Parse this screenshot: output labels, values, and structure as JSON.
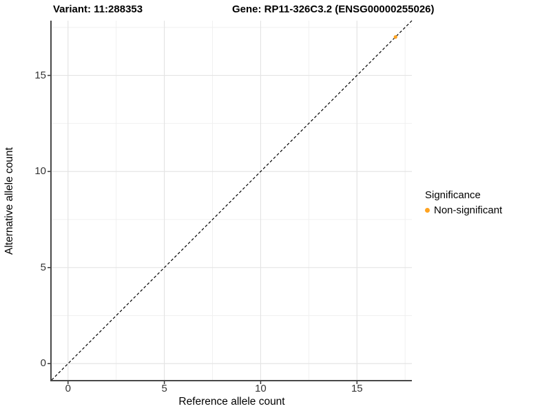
{
  "titles": {
    "variant": "Variant: 11:288353",
    "gene": "Gene: RP11-326C3.2 (ENSG00000255026)"
  },
  "axes": {
    "x_label": "Reference allele count",
    "y_label": "Alternative allele count",
    "x_tick_labels": [
      "0",
      "5",
      "10",
      "15"
    ],
    "y_tick_labels": [
      "0",
      "5",
      "10",
      "15"
    ]
  },
  "legend": {
    "title": "Significance",
    "items": [
      {
        "label": "Non-significant",
        "color": "#FFA320",
        "marker": "circle"
      }
    ]
  },
  "colors": {
    "axis_line": "#474747",
    "tick_mark": "#333333",
    "grid_major": "#E4E4E4",
    "grid_minor": "#F0F0F0",
    "identity_line": "#000000",
    "point": "#FFA320",
    "background": "#FFFFFF"
  },
  "chart_data": {
    "type": "scatter",
    "title": "Variant: 11:288353 | Gene: RP11-326C3.2 (ENSG00000255026)",
    "xlabel": "Reference allele count",
    "ylabel": "Alternative allele count",
    "xlim": [
      -0.85,
      17.85
    ],
    "ylim": [
      -0.85,
      17.85
    ],
    "x_major_ticks": [
      0,
      5,
      10,
      15
    ],
    "y_major_ticks": [
      0,
      5,
      10,
      15
    ],
    "x_minor_ticks": [
      2.5,
      7.5,
      12.5,
      17.5
    ],
    "y_minor_ticks": [
      2.5,
      7.5,
      12.5,
      17.5
    ],
    "grid": "major+minor",
    "legend_position": "right",
    "legend_title": "Significance",
    "reference_line": {
      "equation": "y = x",
      "style": "dashed",
      "color": "#000000"
    },
    "series": [
      {
        "name": "Non-significant",
        "color": "#FFA320",
        "points": [
          {
            "x": 17,
            "y": 17
          }
        ]
      }
    ]
  }
}
